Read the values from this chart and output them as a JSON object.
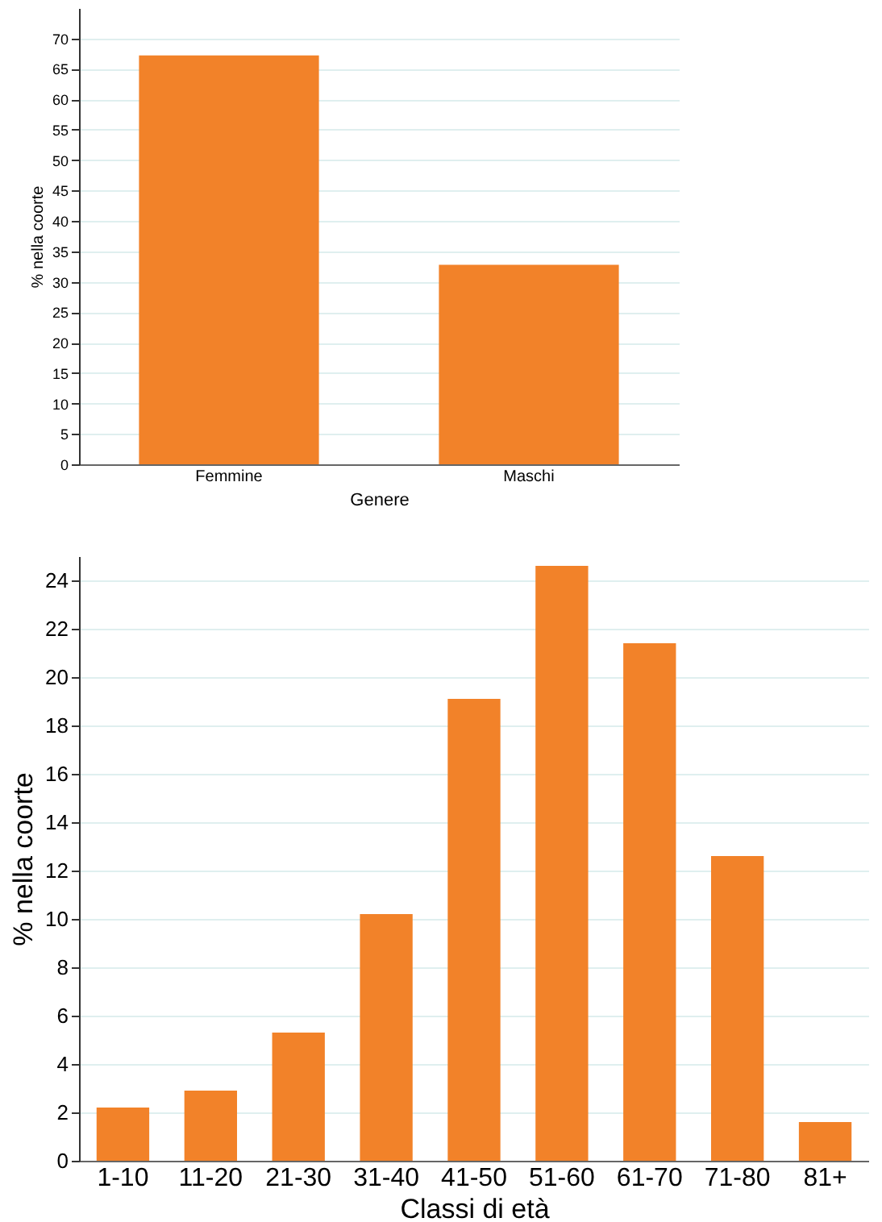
{
  "chart_data": [
    {
      "type": "bar",
      "xlabel": "Genere",
      "ylabel": "% nella coorte",
      "categories": [
        "Femmine",
        "Maschi"
      ],
      "values": [
        67.2,
        32.8
      ],
      "color": "#f28229",
      "ylim": [
        0,
        75
      ],
      "yticks": [
        0,
        5,
        10,
        15,
        20,
        25,
        30,
        35,
        40,
        45,
        50,
        55,
        60,
        65,
        70
      ],
      "grid": "y"
    },
    {
      "type": "bar",
      "xlabel": "Classi di età",
      "ylabel": "% nella coorte",
      "categories": [
        "1-10",
        "11-20",
        "21-30",
        "31-40",
        "41-50",
        "51-60",
        "61-70",
        "71-80",
        "81+"
      ],
      "values": [
        2.2,
        2.9,
        5.3,
        10.2,
        19.1,
        24.6,
        21.4,
        12.6,
        1.6
      ],
      "color": "#f28229",
      "ylim": [
        0,
        25
      ],
      "yticks": [
        0,
        2,
        4,
        6,
        8,
        10,
        12,
        14,
        16,
        18,
        20,
        22,
        24
      ],
      "grid": "y"
    }
  ]
}
